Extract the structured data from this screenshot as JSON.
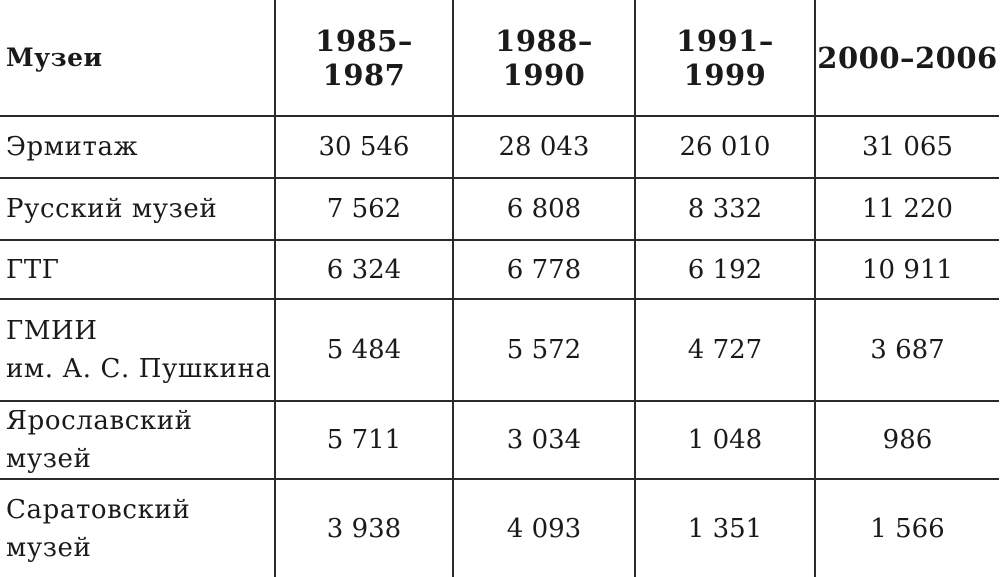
{
  "header": {
    "museums": "Музеи",
    "periods": [
      "1985–1987",
      "1988–1990",
      "1991–1999",
      "2000–2006"
    ]
  },
  "rows": [
    {
      "name": [
        "Эрмитаж"
      ],
      "values": [
        "30 546",
        "28 043",
        "26 010",
        "31 065"
      ]
    },
    {
      "name": [
        "Русский музей"
      ],
      "values": [
        "7 562",
        "6 808",
        "8 332",
        "11 220"
      ]
    },
    {
      "name": [
        "ГТГ"
      ],
      "values": [
        "6 324",
        "6 778",
        "6 192",
        "10 911"
      ]
    },
    {
      "name": [
        "ГМИИ",
        "им. А. С. Пушкина"
      ],
      "values": [
        "5 484",
        "5 572",
        "4 727",
        "3 687"
      ]
    },
    {
      "name": [
        "Ярославский музей"
      ],
      "values": [
        "5 711",
        "3 034",
        "1 048",
        "986"
      ]
    },
    {
      "name": [
        "Саратовский",
        "музей"
      ],
      "values": [
        "3 938",
        "4 093",
        "1 351",
        "1 566"
      ]
    }
  ]
}
